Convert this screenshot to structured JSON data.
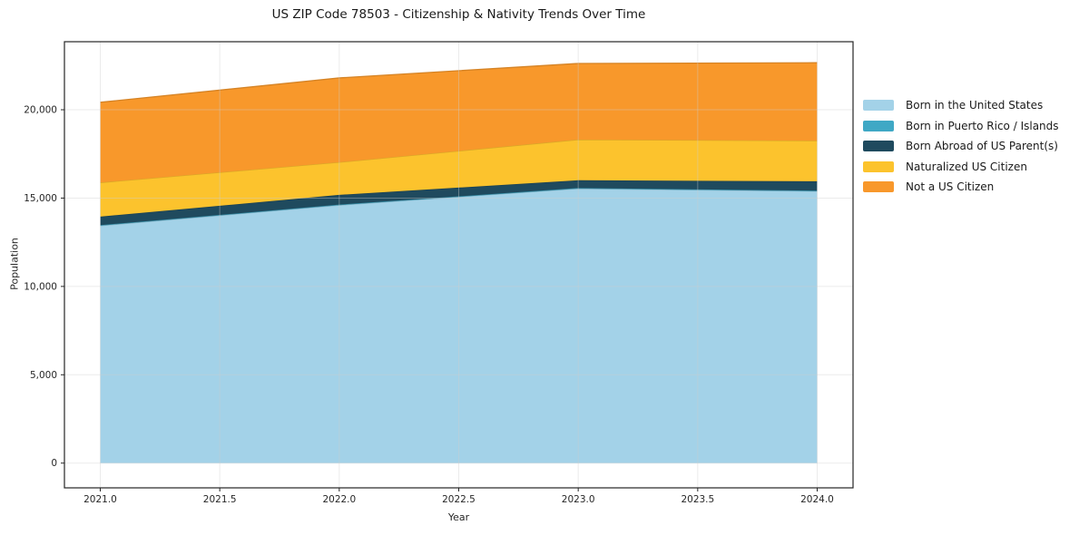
{
  "title": "US ZIP Code 78503 - Citizenship & Nativity Trends Over Time",
  "chart_data": {
    "type": "area",
    "stacked": true,
    "title": "US ZIP Code 78503 - Citizenship & Nativity Trends Over Time",
    "xlabel": "Year",
    "ylabel": "Population",
    "x": [
      2021,
      2022,
      2023,
      2024
    ],
    "series": [
      {
        "name": "Born in the United States",
        "color": "#a3d2e8",
        "values": [
          13440,
          14600,
          15540,
          15390
        ]
      },
      {
        "name": "Born in Puerto Rico / Islands",
        "color": "#3fa8c5",
        "values": [
          30,
          30,
          30,
          30
        ]
      },
      {
        "name": "Born Abroad of US Parent(s)",
        "color": "#1f4a5e",
        "values": [
          480,
          550,
          440,
          530
        ]
      },
      {
        "name": "Naturalized US Citizen",
        "color": "#fcc32d",
        "values": [
          1930,
          1850,
          2300,
          2300
        ]
      },
      {
        "name": "Not a US Citizen",
        "color": "#f8982b",
        "values": [
          4540,
          4770,
          4310,
          4410
        ]
      }
    ],
    "stack_totals": [
      20420,
      21800,
      22620,
      22660
    ],
    "xlim": [
      2020.85,
      2024.15
    ],
    "ylim": [
      -1400,
      23850
    ],
    "xticks": [
      2021.0,
      2021.5,
      2022.0,
      2022.5,
      2023.0,
      2023.5,
      2024.0
    ],
    "xtick_labels": [
      "2021.0",
      "2021.5",
      "2022.0",
      "2022.5",
      "2023.0",
      "2023.5",
      "2024.0"
    ],
    "yticks": [
      0,
      5000,
      10000,
      15000,
      20000
    ],
    "ytick_labels": [
      "0",
      "5,000",
      "10,000",
      "15,000",
      "20,000"
    ],
    "grid": true,
    "legend_position": "right-outside",
    "colors": {
      "background": "#ffffff",
      "spine": "#262626",
      "tick_label": "#262626",
      "gridline": "#cccccc"
    }
  }
}
